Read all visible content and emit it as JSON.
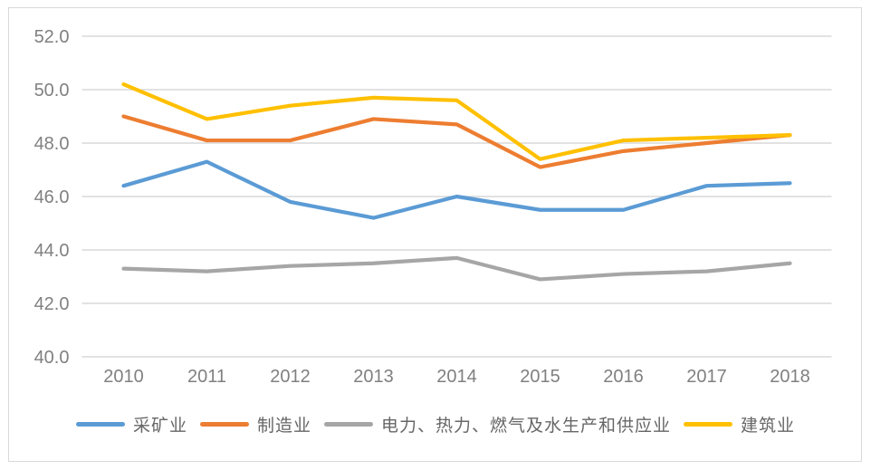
{
  "chart_data": {
    "type": "line",
    "title": "",
    "categories": [
      "2010",
      "2011",
      "2012",
      "2013",
      "2014",
      "2015",
      "2016",
      "2017",
      "2018"
    ],
    "series": [
      {
        "name": "采矿业",
        "color": "#5B9BD5",
        "values": [
          46.4,
          47.3,
          45.8,
          45.2,
          46.0,
          45.5,
          45.5,
          46.4,
          46.5
        ]
      },
      {
        "name": "制造业",
        "color": "#ED7D31",
        "values": [
          49.0,
          48.1,
          48.1,
          48.9,
          48.7,
          47.1,
          47.7,
          48.0,
          48.3
        ]
      },
      {
        "name": "电力、热力、燃气及水生产和供应业",
        "color": "#A6A6A6",
        "values": [
          43.3,
          43.2,
          43.4,
          43.5,
          43.7,
          42.9,
          43.1,
          43.2,
          43.5
        ]
      },
      {
        "name": "建筑业",
        "color": "#FFC000",
        "values": [
          50.2,
          48.9,
          49.4,
          49.7,
          49.6,
          47.4,
          48.1,
          48.2,
          48.3
        ]
      }
    ],
    "xlabel": "",
    "ylabel": "",
    "ylim": [
      40,
      52
    ],
    "ytick_step": 2,
    "yticks": [
      "40.0",
      "42.0",
      "44.0",
      "46.0",
      "48.0",
      "50.0",
      "52.0"
    ],
    "grid": true,
    "legend_position": "bottom",
    "grid_color": "#d9d9d9",
    "axis_text_color": "#808080",
    "frame_border_color": "#d9d9d9"
  }
}
